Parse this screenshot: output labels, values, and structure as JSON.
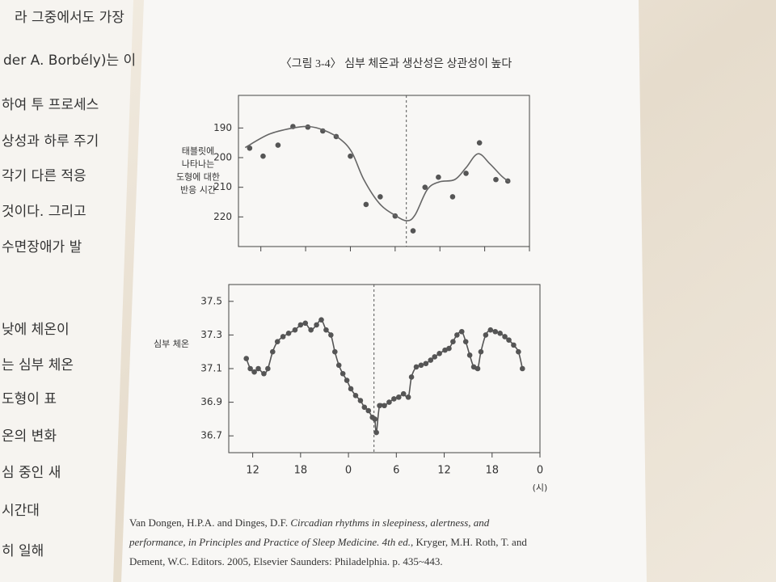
{
  "figure_title": "〈그림 3-4〉 심부 체온과 생산성은 상관성이 높다",
  "left_page": [
    "라 그중에서도 가장",
    "der A. Borbély)는 이",
    "하여 투 프로세스",
    "상성과 하루 주기",
    "각기 다른 적응",
    "것이다. 그리고",
    "수면장애가 발",
    "낮에 체온이",
    "는 심부 체온",
    "도형이 표",
    "온의 변화",
    "심 중인 새",
    "시간대",
    "히 일해"
  ],
  "caption": [
    [
      {
        "text": "Van Dongen, H.P.A. and Dinges, D.F. ",
        "italic": false
      },
      {
        "text": "Circadian rhythms in sleepiness, alertness, and",
        "italic": true
      }
    ],
    [
      {
        "text": "performance, in Principles and Practice of Sleep Medicine. 4th ed.",
        "italic": true
      },
      {
        "text": ", Kryger, M.H. Roth, T. and",
        "italic": false
      }
    ],
    [
      {
        "text": "Dement, W.C. Editors. 2005, Elsevier Saunders: Philadelphia. p. 435~443.",
        "italic": false
      }
    ]
  ],
  "chart_data": [
    {
      "type": "scatter",
      "ylabel": [
        "태블릿에",
        "나타나는",
        "도형에 대한",
        "반응 시간"
      ],
      "xlim": [
        9,
        48
      ],
      "ylim": [
        230,
        179
      ],
      "xticks": [
        12,
        18,
        24,
        30,
        36,
        42,
        48
      ],
      "yticks": [
        190,
        200,
        210,
        220
      ],
      "vline": 31.5,
      "series": [
        {
          "mode": "markers",
          "color": "#555555",
          "x": [
            10.5,
            12.3,
            14.3,
            16.3,
            18.3,
            20.3,
            22.1,
            24,
            26.1,
            28,
            30,
            32.4,
            34,
            35.8,
            37.7,
            39.5,
            41.3,
            43.5,
            45.1
          ],
          "values": [
            196.8,
            199.5,
            195.8,
            189.5,
            189.7,
            191,
            192.9,
            199.5,
            215.8,
            213.2,
            219.7,
            224.7,
            210,
            206.6,
            213.2,
            205.3,
            195,
            207.4,
            207.9
          ]
        },
        {
          "mode": "line",
          "color": "#666666",
          "x": [
            9.9,
            13.1,
            16.3,
            18.4,
            20.5,
            22.6,
            24.2,
            25.8,
            27.9,
            30,
            31.6,
            32.7,
            34.3,
            35.9,
            38,
            39.5,
            41.1,
            42.7,
            44.3,
            45.3
          ],
          "values": [
            196.6,
            192.1,
            190,
            189.5,
            190.8,
            193.7,
            198.2,
            207.4,
            215.5,
            219.5,
            221.3,
            219.2,
            210.8,
            208.2,
            207.4,
            203.4,
            198.7,
            202.1,
            206.3,
            208.2
          ]
        }
      ]
    },
    {
      "type": "scatter",
      "ylabel": [
        "심부 체온"
      ],
      "xlabel": "(시)",
      "xlim": [
        9,
        48
      ],
      "ylim": [
        36.6,
        37.6
      ],
      "xticks": [
        {
          "value": 12,
          "label": "12"
        },
        {
          "value": 18,
          "label": "18"
        },
        {
          "value": 24,
          "label": "0"
        },
        {
          "value": 30,
          "label": "6"
        },
        {
          "value": 36,
          "label": "12"
        },
        {
          "value": 42,
          "label": "18"
        },
        {
          "value": 48,
          "label": "0"
        }
      ],
      "yticks": [
        36.7,
        36.9,
        37.1,
        37.3,
        37.5
      ],
      "vline": 27.2,
      "series": [
        {
          "mode": "markers+line",
          "color": "#555555",
          "x": [
            11.2,
            11.7,
            12.2,
            12.7,
            13.4,
            13.9,
            14.5,
            15.1,
            15.8,
            16.5,
            17.3,
            18.0,
            18.6,
            19.3,
            20.0,
            20.6,
            21.2,
            21.8,
            22.3,
            22.8,
            23.3,
            23.8,
            24.3,
            24.9,
            25.5,
            26.0,
            26.5,
            27.0,
            27.3,
            27.5,
            27.9,
            28.5,
            29.1,
            29.7,
            30.3,
            30.9,
            31.5,
            31.9,
            32.5,
            33.1,
            33.7,
            34.3,
            34.8,
            35.4,
            36.1,
            36.6,
            37.1,
            37.6,
            38.2,
            38.7,
            39.2,
            39.7,
            40.2,
            40.6,
            41.2,
            41.8,
            42.4,
            43.0,
            43.6,
            44.1,
            44.7,
            45.3,
            45.8
          ],
          "values": [
            37.16,
            37.1,
            37.08,
            37.1,
            37.07,
            37.1,
            37.2,
            37.26,
            37.29,
            37.31,
            37.33,
            37.36,
            37.37,
            37.33,
            37.36,
            37.39,
            37.33,
            37.3,
            37.2,
            37.12,
            37.07,
            37.03,
            36.98,
            36.94,
            36.91,
            36.87,
            36.85,
            36.81,
            36.8,
            36.72,
            36.88,
            36.88,
            36.9,
            36.92,
            36.93,
            36.95,
            36.93,
            37.05,
            37.11,
            37.12,
            37.13,
            37.15,
            37.17,
            37.19,
            37.21,
            37.22,
            37.26,
            37.3,
            37.32,
            37.26,
            37.18,
            37.11,
            37.1,
            37.2,
            37.3,
            37.33,
            37.32,
            37.31,
            37.29,
            37.27,
            37.24,
            37.2,
            37.1
          ]
        }
      ]
    }
  ]
}
